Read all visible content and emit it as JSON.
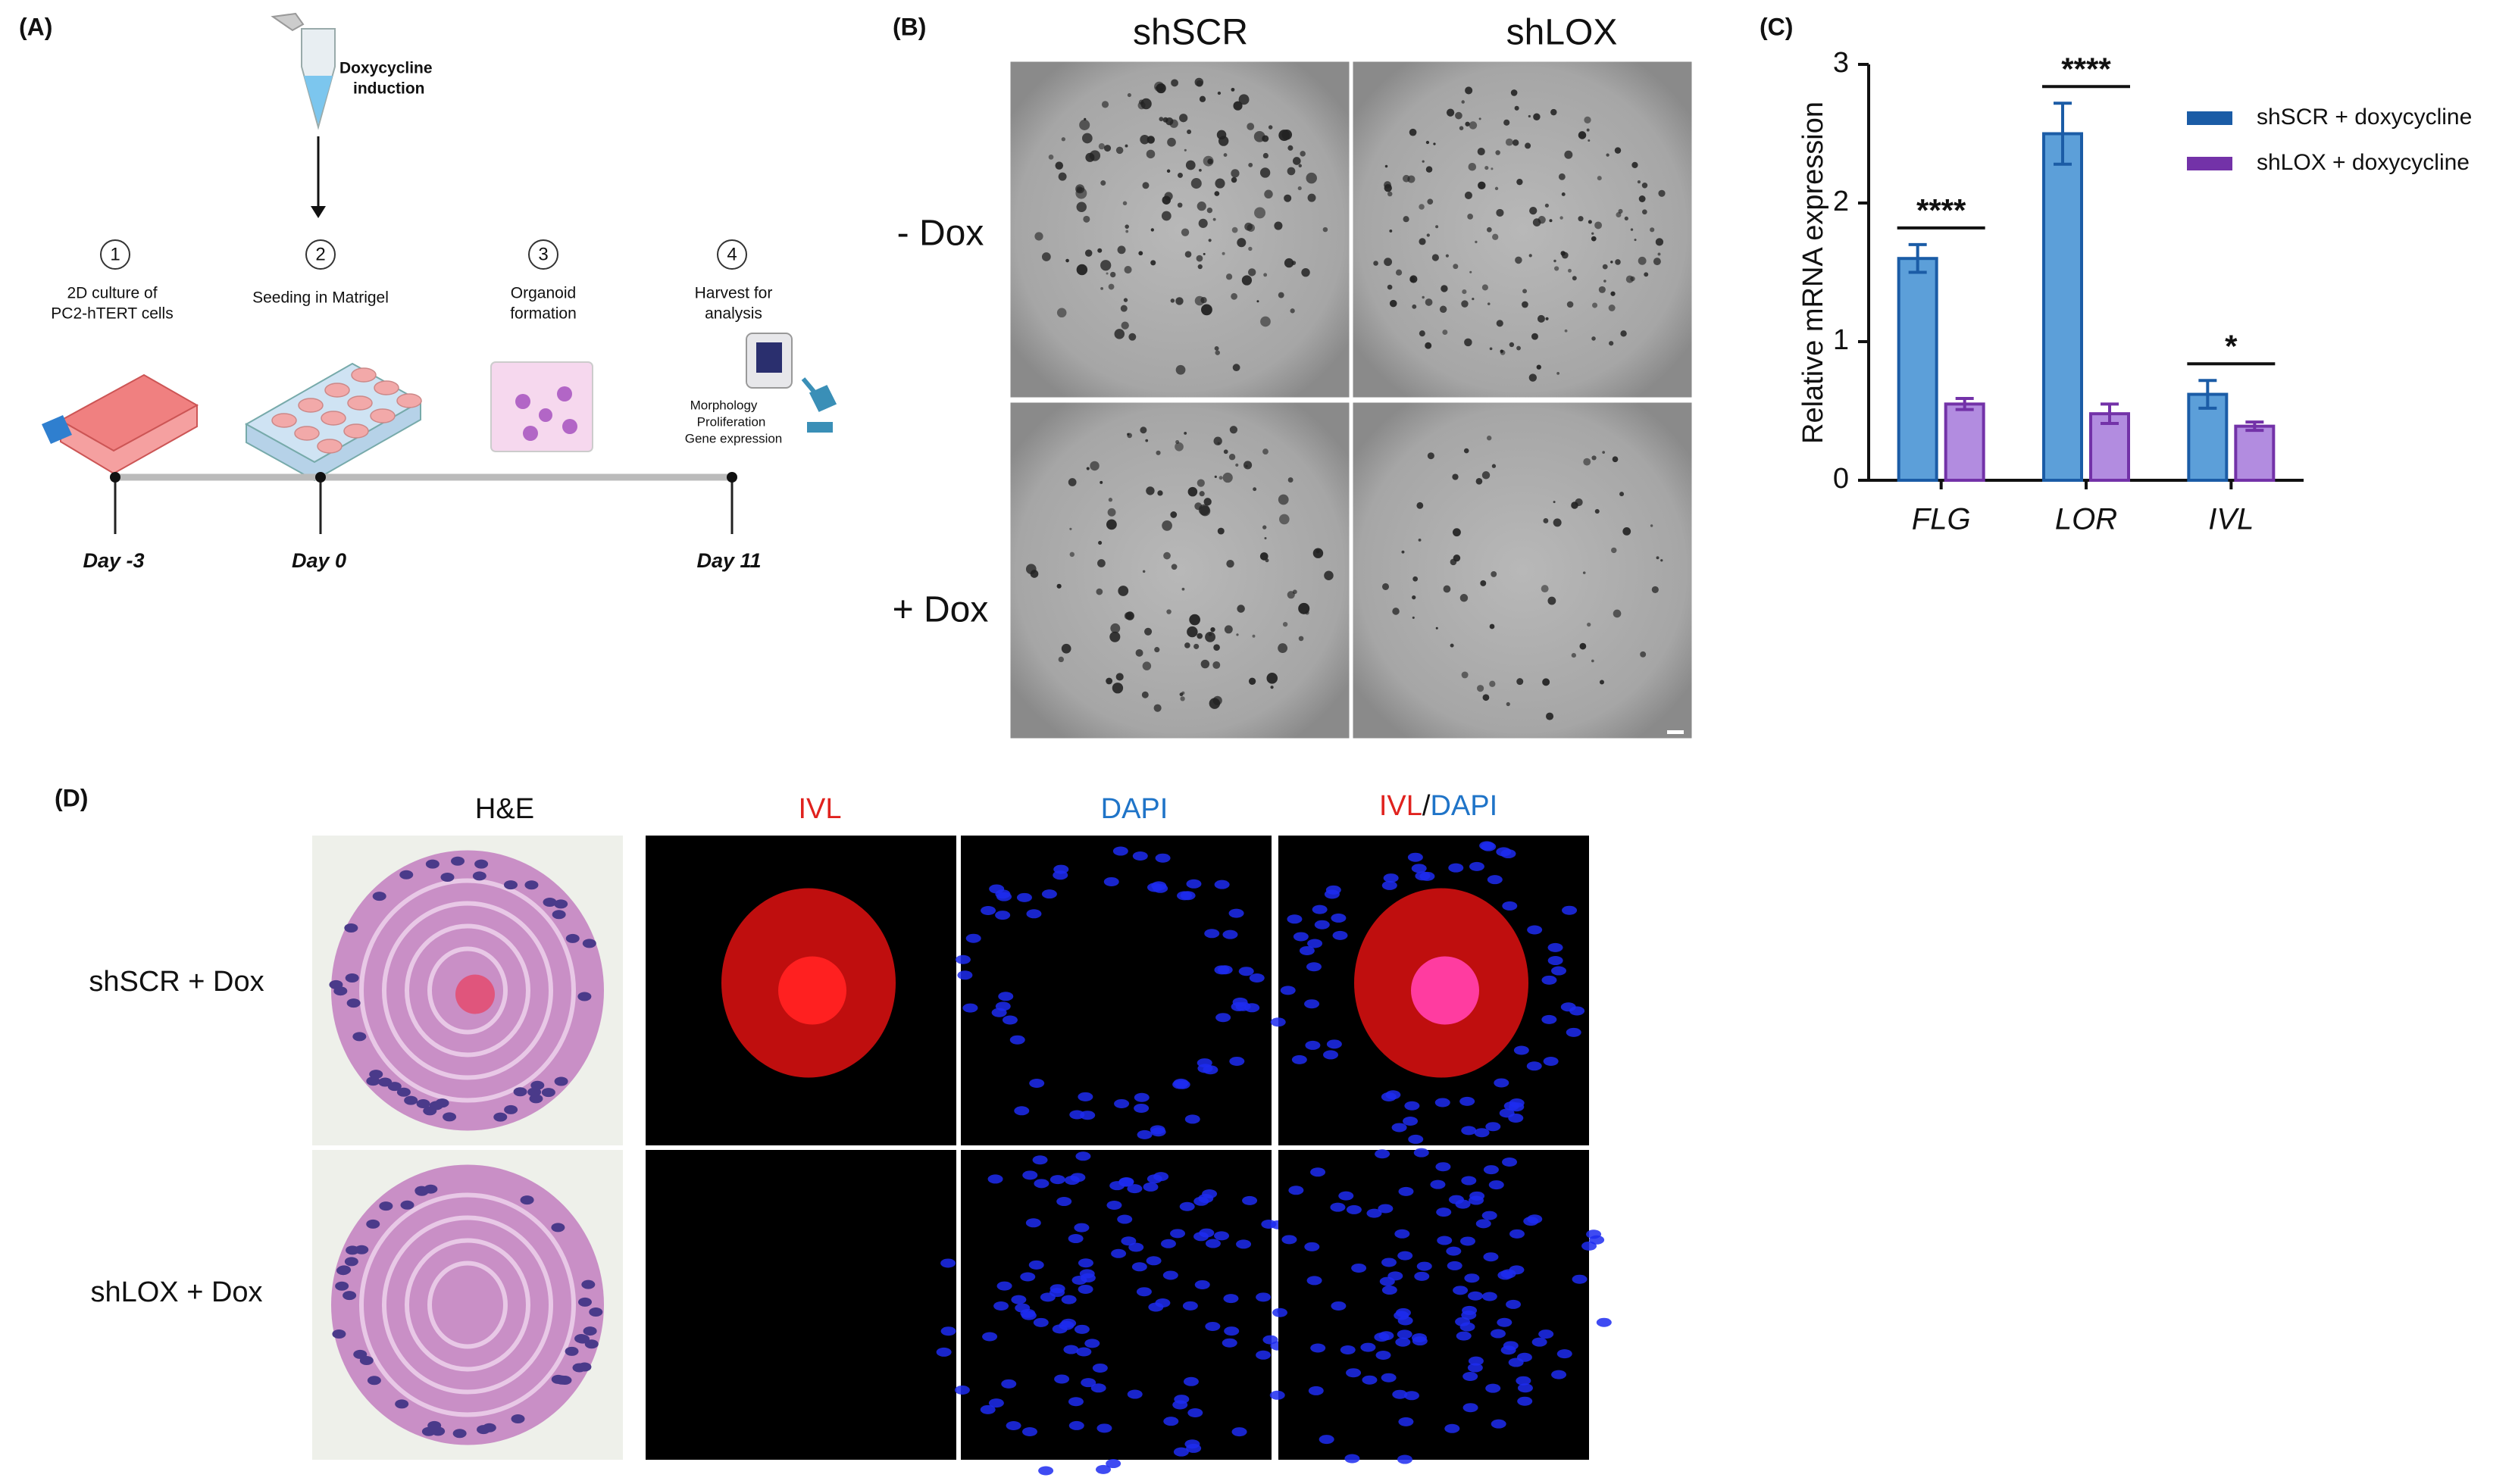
{
  "panels": {
    "a": {
      "label": "(A)",
      "induction": [
        "Doxycycline",
        "induction"
      ],
      "steps": [
        {
          "number": 1,
          "lines": [
            "2D culture of",
            "PC2-hTERT cells"
          ]
        },
        {
          "number": 2,
          "lines": [
            "Seeding in Matrigel"
          ]
        },
        {
          "number": 3,
          "lines": [
            "Organoid",
            "formation"
          ]
        },
        {
          "number": 4,
          "lines": [
            "Harvest for",
            "analysis"
          ]
        }
      ],
      "analyses": [
        "Morphology",
        "Proliferation",
        "Gene expression"
      ],
      "days": [
        "Day -3",
        "Day 0",
        "Day 11"
      ]
    },
    "b": {
      "label": "(B)",
      "columns": [
        "shSCR",
        "shLOX"
      ],
      "rows": [
        "- Dox",
        "+ Dox"
      ]
    },
    "c": {
      "label": "(C)"
    },
    "d": {
      "label": "(D)",
      "columns": [
        "H&E",
        "IVL",
        "DAPI"
      ],
      "merge": [
        "IVL",
        "/",
        "DAPI"
      ],
      "rows": [
        "shSCR + Dox",
        "shLOX + Dox"
      ]
    }
  },
  "chart_data": {
    "type": "bar",
    "ylabel": "Relative mRNA expression",
    "categories": [
      "FLG",
      "LOR",
      "IVL"
    ],
    "series": [
      {
        "name": "shSCR + doxycycline",
        "color": "#1b5ca6",
        "fill": "#5c9fd9",
        "values": [
          1.6,
          2.5,
          0.62
        ],
        "errors": [
          0.1,
          0.22,
          0.1
        ]
      },
      {
        "name": "shLOX + doxycycline",
        "color": "#7332a8",
        "fill": "#b28ce0",
        "values": [
          0.55,
          0.48,
          0.39
        ],
        "errors": [
          0.04,
          0.07,
          0.03
        ]
      }
    ],
    "significance": [
      "****",
      "****",
      "*"
    ],
    "ylim": [
      0,
      3
    ],
    "yticks": [
      0,
      1,
      2,
      3
    ]
  }
}
